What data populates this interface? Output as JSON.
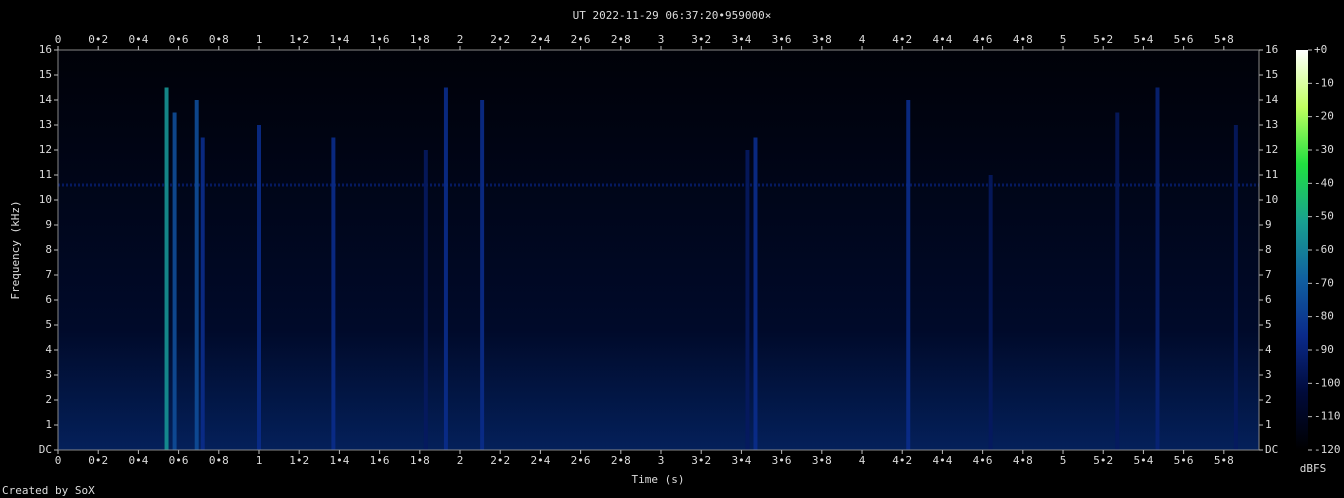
{
  "chart_data": {
    "type": "spectrogram",
    "title": "UT 2022-11-29 06:37:20•959000×",
    "xlabel": "Time (s)",
    "ylabel": "Frequency (kHz)",
    "colorbar_label": "dBFS",
    "footer": "Created by SoX",
    "xlim": [
      0,
      5.975
    ],
    "ylim": [
      0,
      16
    ],
    "clim": [
      -120,
      0
    ],
    "xticks": [
      0,
      {
        "value": 0.2,
        "label": "0•2"
      },
      {
        "value": 0.4,
        "label": "0•4"
      },
      {
        "value": 0.6,
        "label": "0•6"
      },
      {
        "value": 0.8,
        "label": "0•8"
      },
      1,
      {
        "value": 1.2,
        "label": "1•2"
      },
      {
        "value": 1.4,
        "label": "1•4"
      },
      {
        "value": 1.6,
        "label": "1•6"
      },
      {
        "value": 1.8,
        "label": "1•8"
      },
      2,
      {
        "value": 2.2,
        "label": "2•2"
      },
      {
        "value": 2.4,
        "label": "2•4"
      },
      {
        "value": 2.6,
        "label": "2•6"
      },
      {
        "value": 2.8,
        "label": "2•8"
      },
      3,
      {
        "value": 3.2,
        "label": "3•2"
      },
      {
        "value": 3.4,
        "label": "3•4"
      },
      {
        "value": 3.6,
        "label": "3•6"
      },
      {
        "value": 3.8,
        "label": "3•8"
      },
      4,
      {
        "value": 4.2,
        "label": "4•2"
      },
      {
        "value": 4.4,
        "label": "4•4"
      },
      {
        "value": 4.6,
        "label": "4•6"
      },
      {
        "value": 4.8,
        "label": "4•8"
      },
      5,
      {
        "value": 5.2,
        "label": "5•2"
      },
      {
        "value": 5.4,
        "label": "5•4"
      },
      {
        "value": 5.6,
        "label": "5•6"
      },
      {
        "value": 5.8,
        "label": "5•8"
      }
    ],
    "yticks": [
      {
        "value": 0,
        "label": "DC"
      },
      1,
      2,
      3,
      4,
      5,
      6,
      7,
      8,
      9,
      10,
      11,
      12,
      13,
      14,
      15,
      16
    ],
    "cticks": [
      {
        "value": 0,
        "label": "+0"
      },
      -10,
      -20,
      -30,
      -40,
      -50,
      -60,
      -70,
      -80,
      -90,
      -100,
      -110,
      -120
    ],
    "colormap": [
      "#000000",
      "#000a3a",
      "#0a2a8a",
      "#1060a0",
      "#18a090",
      "#20e040",
      "#c0ff60",
      "#ffffff"
    ],
    "bursts": {
      "t": [
        0.54,
        0.58,
        0.69,
        0.72,
        1.0,
        1.37,
        1.83,
        1.93,
        2.11,
        3.43,
        3.47,
        4.23,
        4.64,
        5.27,
        5.47,
        5.86
      ],
      "fmax": [
        14.5,
        13.5,
        14,
        12.5,
        13,
        12.5,
        12,
        14.5,
        14,
        12,
        12.5,
        14,
        11,
        13.5,
        14.5,
        13
      ],
      "level": [
        -55,
        -75,
        -75,
        -85,
        -85,
        -85,
        -95,
        -85,
        -85,
        -95,
        -85,
        -85,
        -95,
        -95,
        -90,
        -95
      ]
    },
    "tone": {
      "freq": 10.6,
      "level": -95
    }
  }
}
